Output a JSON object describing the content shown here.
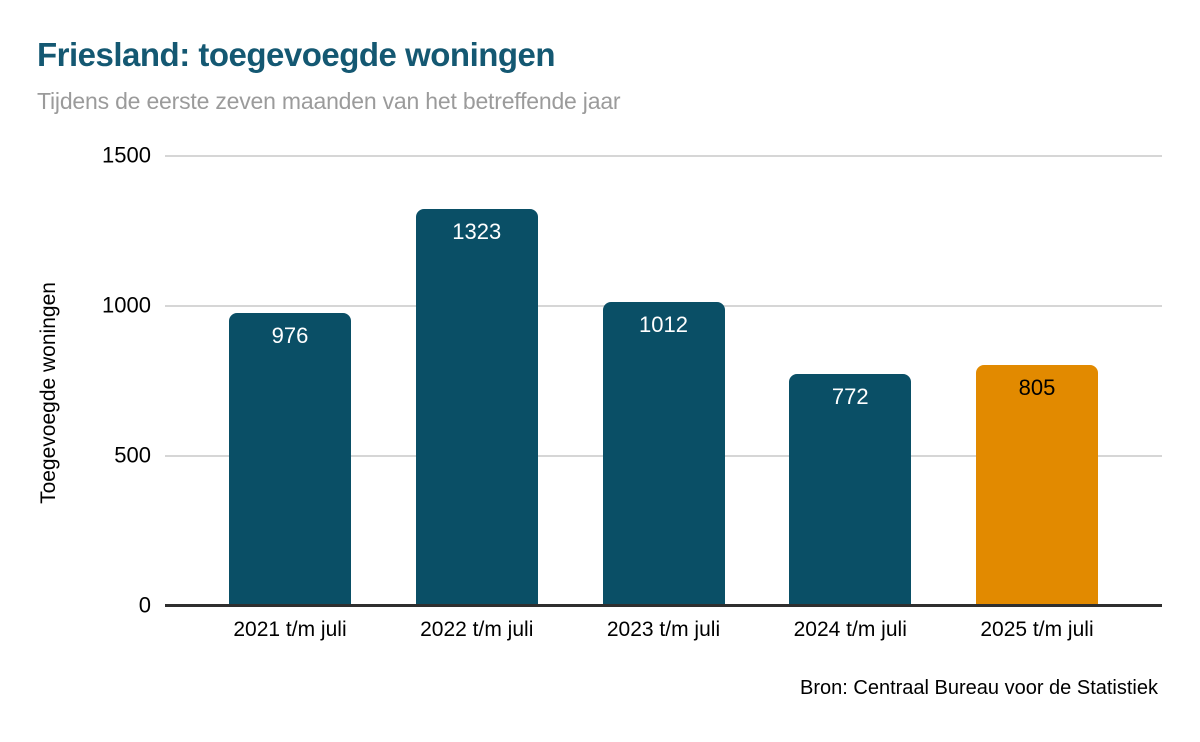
{
  "header": {
    "title": "Friesland: toegevoegde woningen",
    "subtitle": "Tijdens de eerste zeven maanden van het betreffende jaar"
  },
  "footer": {
    "source": "Bron: Centraal Bureau voor de Statistiek"
  },
  "colors": {
    "title_text": "#145872",
    "subtitle_text": "#9b9b9b",
    "bar_teal": "#0a4f66",
    "bar_orange": "#e28a00",
    "gridline": "#d6d6d6",
    "axis_line": "#2f2f2f",
    "value_on_teal": "#ffffff",
    "value_on_orange": "#000000"
  },
  "chart_data": {
    "type": "bar",
    "title": "Friesland: toegevoegde woningen",
    "subtitle": "Tijdens de eerste zeven maanden van het betreffende jaar",
    "categories": [
      "2021 t/m juli",
      "2022 t/m juli",
      "2023 t/m juli",
      "2024 t/m juli",
      "2025 t/m juli"
    ],
    "values": [
      976,
      1323,
      1012,
      772,
      805
    ],
    "bar_colors": [
      "#0a4f66",
      "#0a4f66",
      "#0a4f66",
      "#0a4f66",
      "#e28a00"
    ],
    "value_label_colors": [
      "#ffffff",
      "#ffffff",
      "#ffffff",
      "#ffffff",
      "#000000"
    ],
    "xlabel": "",
    "ylabel": "Toegevoegde woningen",
    "ylim": [
      0,
      1500
    ],
    "yticks": [
      0,
      500,
      1000,
      1500
    ],
    "grid": "horizontal",
    "legend": "none",
    "source": "Bron: Centraal Bureau voor de Statistiek"
  }
}
